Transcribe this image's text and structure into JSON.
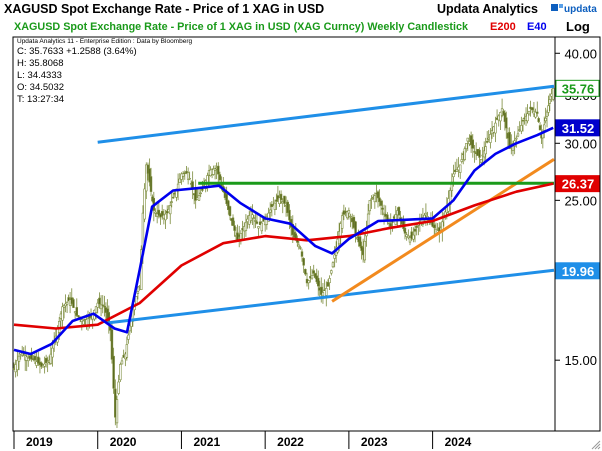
{
  "header": {
    "title": "XAGUSD Spot Exchange Rate - Price of 1 XAG in USD",
    "vendor": "Updata Analytics",
    "log_label": "Log"
  },
  "chart_data": {
    "type": "candlestick",
    "title": "XAGUSD Spot Exchange Rate - Price of 1 XAG in USD (XAG Curncy) Weekly Candlestick",
    "subtitle_lines": [
      "Updata Analytics 11 - Enterprise Edition : Data by Bloomberg",
      "C: 35.7633  +1.2588 (3.64%)",
      "H: 35.8068",
      "L: 34.4333",
      "O: 34.5032",
      "T: 13:27:34"
    ],
    "legend": [
      {
        "name": "E200",
        "color": "#e00000"
      },
      {
        "name": "E40",
        "color": "#0000ff"
      }
    ],
    "y_scale": "log",
    "ylim": [
      12,
      42
    ],
    "y_ticks": [
      "40.00",
      "35.00",
      "30.00",
      "25.00",
      "20.00",
      "15.00"
    ],
    "x_range": [
      2019.0,
      2025.45
    ],
    "x_ticks": [
      "2019",
      "2020",
      "2021",
      "2022",
      "2023",
      "2024"
    ],
    "price_series": [
      [
        2019.0,
        14.6
      ],
      [
        2019.08,
        15.4
      ],
      [
        2019.17,
        15.1
      ],
      [
        2019.25,
        15.0
      ],
      [
        2019.33,
        14.7
      ],
      [
        2019.42,
        15.0
      ],
      [
        2019.5,
        16.2
      ],
      [
        2019.58,
        17.8
      ],
      [
        2019.67,
        18.2
      ],
      [
        2019.75,
        17.3
      ],
      [
        2019.83,
        17.0
      ],
      [
        2019.92,
        17.2
      ],
      [
        2020.0,
        18.0
      ],
      [
        2020.08,
        17.8
      ],
      [
        2020.15,
        16.5
      ],
      [
        2020.21,
        12.5
      ],
      [
        2020.27,
        14.8
      ],
      [
        2020.33,
        15.3
      ],
      [
        2020.42,
        17.8
      ],
      [
        2020.5,
        19.0
      ],
      [
        2020.54,
        24.0
      ],
      [
        2020.58,
        28.0
      ],
      [
        2020.62,
        26.5
      ],
      [
        2020.67,
        24.2
      ],
      [
        2020.75,
        23.7
      ],
      [
        2020.83,
        24.0
      ],
      [
        2020.92,
        25.5
      ],
      [
        2021.0,
        27.2
      ],
      [
        2021.08,
        27.3
      ],
      [
        2021.17,
        25.0
      ],
      [
        2021.25,
        25.8
      ],
      [
        2021.33,
        27.5
      ],
      [
        2021.42,
        27.7
      ],
      [
        2021.5,
        25.7
      ],
      [
        2021.58,
        23.8
      ],
      [
        2021.67,
        22.0
      ],
      [
        2021.75,
        23.0
      ],
      [
        2021.83,
        24.1
      ],
      [
        2021.92,
        23.0
      ],
      [
        2022.0,
        23.5
      ],
      [
        2022.08,
        24.5
      ],
      [
        2022.17,
        25.2
      ],
      [
        2022.25,
        24.6
      ],
      [
        2022.33,
        22.4
      ],
      [
        2022.42,
        21.5
      ],
      [
        2022.5,
        19.2
      ],
      [
        2022.58,
        19.8
      ],
      [
        2022.67,
        18.5
      ],
      [
        2022.75,
        19.0
      ],
      [
        2022.83,
        21.0
      ],
      [
        2022.92,
        23.8
      ],
      [
        2023.0,
        24.2
      ],
      [
        2023.08,
        22.5
      ],
      [
        2023.17,
        21.0
      ],
      [
        2023.25,
        25.0
      ],
      [
        2023.33,
        25.5
      ],
      [
        2023.42,
        24.0
      ],
      [
        2023.5,
        23.0
      ],
      [
        2023.58,
        24.2
      ],
      [
        2023.67,
        22.5
      ],
      [
        2023.75,
        22.1
      ],
      [
        2023.83,
        23.2
      ],
      [
        2023.92,
        24.0
      ],
      [
        2024.0,
        23.0
      ],
      [
        2024.08,
        22.6
      ],
      [
        2024.17,
        24.5
      ],
      [
        2024.25,
        27.2
      ],
      [
        2024.33,
        28.0
      ],
      [
        2024.42,
        30.5
      ],
      [
        2024.5,
        29.2
      ],
      [
        2024.58,
        28.5
      ],
      [
        2024.67,
        30.5
      ],
      [
        2024.75,
        32.0
      ],
      [
        2024.83,
        33.5
      ],
      [
        2024.88,
        31.5
      ],
      [
        2024.92,
        29.5
      ],
      [
        2025.0,
        30.5
      ],
      [
        2025.08,
        32.2
      ],
      [
        2025.17,
        33.5
      ],
      [
        2025.25,
        33.0
      ],
      [
        2025.3,
        30.5
      ],
      [
        2025.35,
        32.5
      ],
      [
        2025.4,
        34.5
      ],
      [
        2025.44,
        35.76
      ]
    ],
    "e200_series": [
      [
        2019.0,
        16.8
      ],
      [
        2019.5,
        16.6
      ],
      [
        2020.0,
        16.8
      ],
      [
        2020.5,
        18.0
      ],
      [
        2021.0,
        20.3
      ],
      [
        2021.5,
        21.8
      ],
      [
        2022.0,
        22.3
      ],
      [
        2022.5,
        22.0
      ],
      [
        2023.0,
        22.3
      ],
      [
        2023.5,
        22.9
      ],
      [
        2024.0,
        23.4
      ],
      [
        2024.5,
        24.6
      ],
      [
        2025.0,
        25.7
      ],
      [
        2025.44,
        26.37
      ]
    ],
    "e40_series": [
      [
        2019.0,
        15.5
      ],
      [
        2019.2,
        15.3
      ],
      [
        2019.45,
        15.8
      ],
      [
        2019.7,
        17.0
      ],
      [
        2019.95,
        17.4
      ],
      [
        2020.2,
        16.6
      ],
      [
        2020.35,
        16.4
      ],
      [
        2020.5,
        20.0
      ],
      [
        2020.65,
        24.5
      ],
      [
        2020.9,
        25.8
      ],
      [
        2021.2,
        26.0
      ],
      [
        2021.45,
        26.2
      ],
      [
        2021.7,
        24.8
      ],
      [
        2022.0,
        23.6
      ],
      [
        2022.3,
        23.2
      ],
      [
        2022.6,
        21.6
      ],
      [
        2022.8,
        21.1
      ],
      [
        2023.0,
        22.1
      ],
      [
        2023.35,
        23.4
      ],
      [
        2023.7,
        23.5
      ],
      [
        2024.0,
        23.6
      ],
      [
        2024.25,
        25.0
      ],
      [
        2024.5,
        27.5
      ],
      [
        2024.75,
        29.0
      ],
      [
        2025.0,
        30.0
      ],
      [
        2025.25,
        30.8
      ],
      [
        2025.44,
        31.52
      ]
    ],
    "trendlines": [
      {
        "kind": "upper-channel",
        "color": "#1f8fe8",
        "points": [
          [
            2020.0,
            30.1
          ],
          [
            2025.45,
            36.0
          ]
        ]
      },
      {
        "kind": "lower-channel",
        "color": "#1f8fe8",
        "points": [
          [
            2020.12,
            16.9
          ],
          [
            2025.45,
            20.0
          ]
        ]
      },
      {
        "kind": "support",
        "color": "#f28a1e",
        "points": [
          [
            2022.8,
            18.1
          ],
          [
            2025.45,
            28.5
          ]
        ]
      },
      {
        "kind": "resistance",
        "color": "#1a9a1a",
        "points": [
          [
            2021.2,
            26.4
          ],
          [
            2025.45,
            26.4
          ]
        ]
      }
    ],
    "value_labels": [
      {
        "value": "35.76",
        "price": 35.76,
        "bg": "#ffffff",
        "fg": "#1a9a1a",
        "border": "#1a9a1a"
      },
      {
        "value": "31.52",
        "price": 31.52,
        "bg": "#0000cc",
        "fg": "#ffffff",
        "border": "#0000cc"
      },
      {
        "value": "26.37",
        "price": 26.37,
        "bg": "#e00000",
        "fg": "#ffffff",
        "border": "#e00000"
      },
      {
        "value": "19.96",
        "price": 19.96,
        "bg": "#1f8fe8",
        "fg": "#ffffff",
        "border": "#1f8fe8"
      }
    ],
    "grid": false
  },
  "colors": {
    "title": "#000000",
    "chart_title": "#1a9a1a",
    "price": "#7a8a3a",
    "e200": "#e00000",
    "e40": "#0000ee",
    "frame": "#000000"
  }
}
